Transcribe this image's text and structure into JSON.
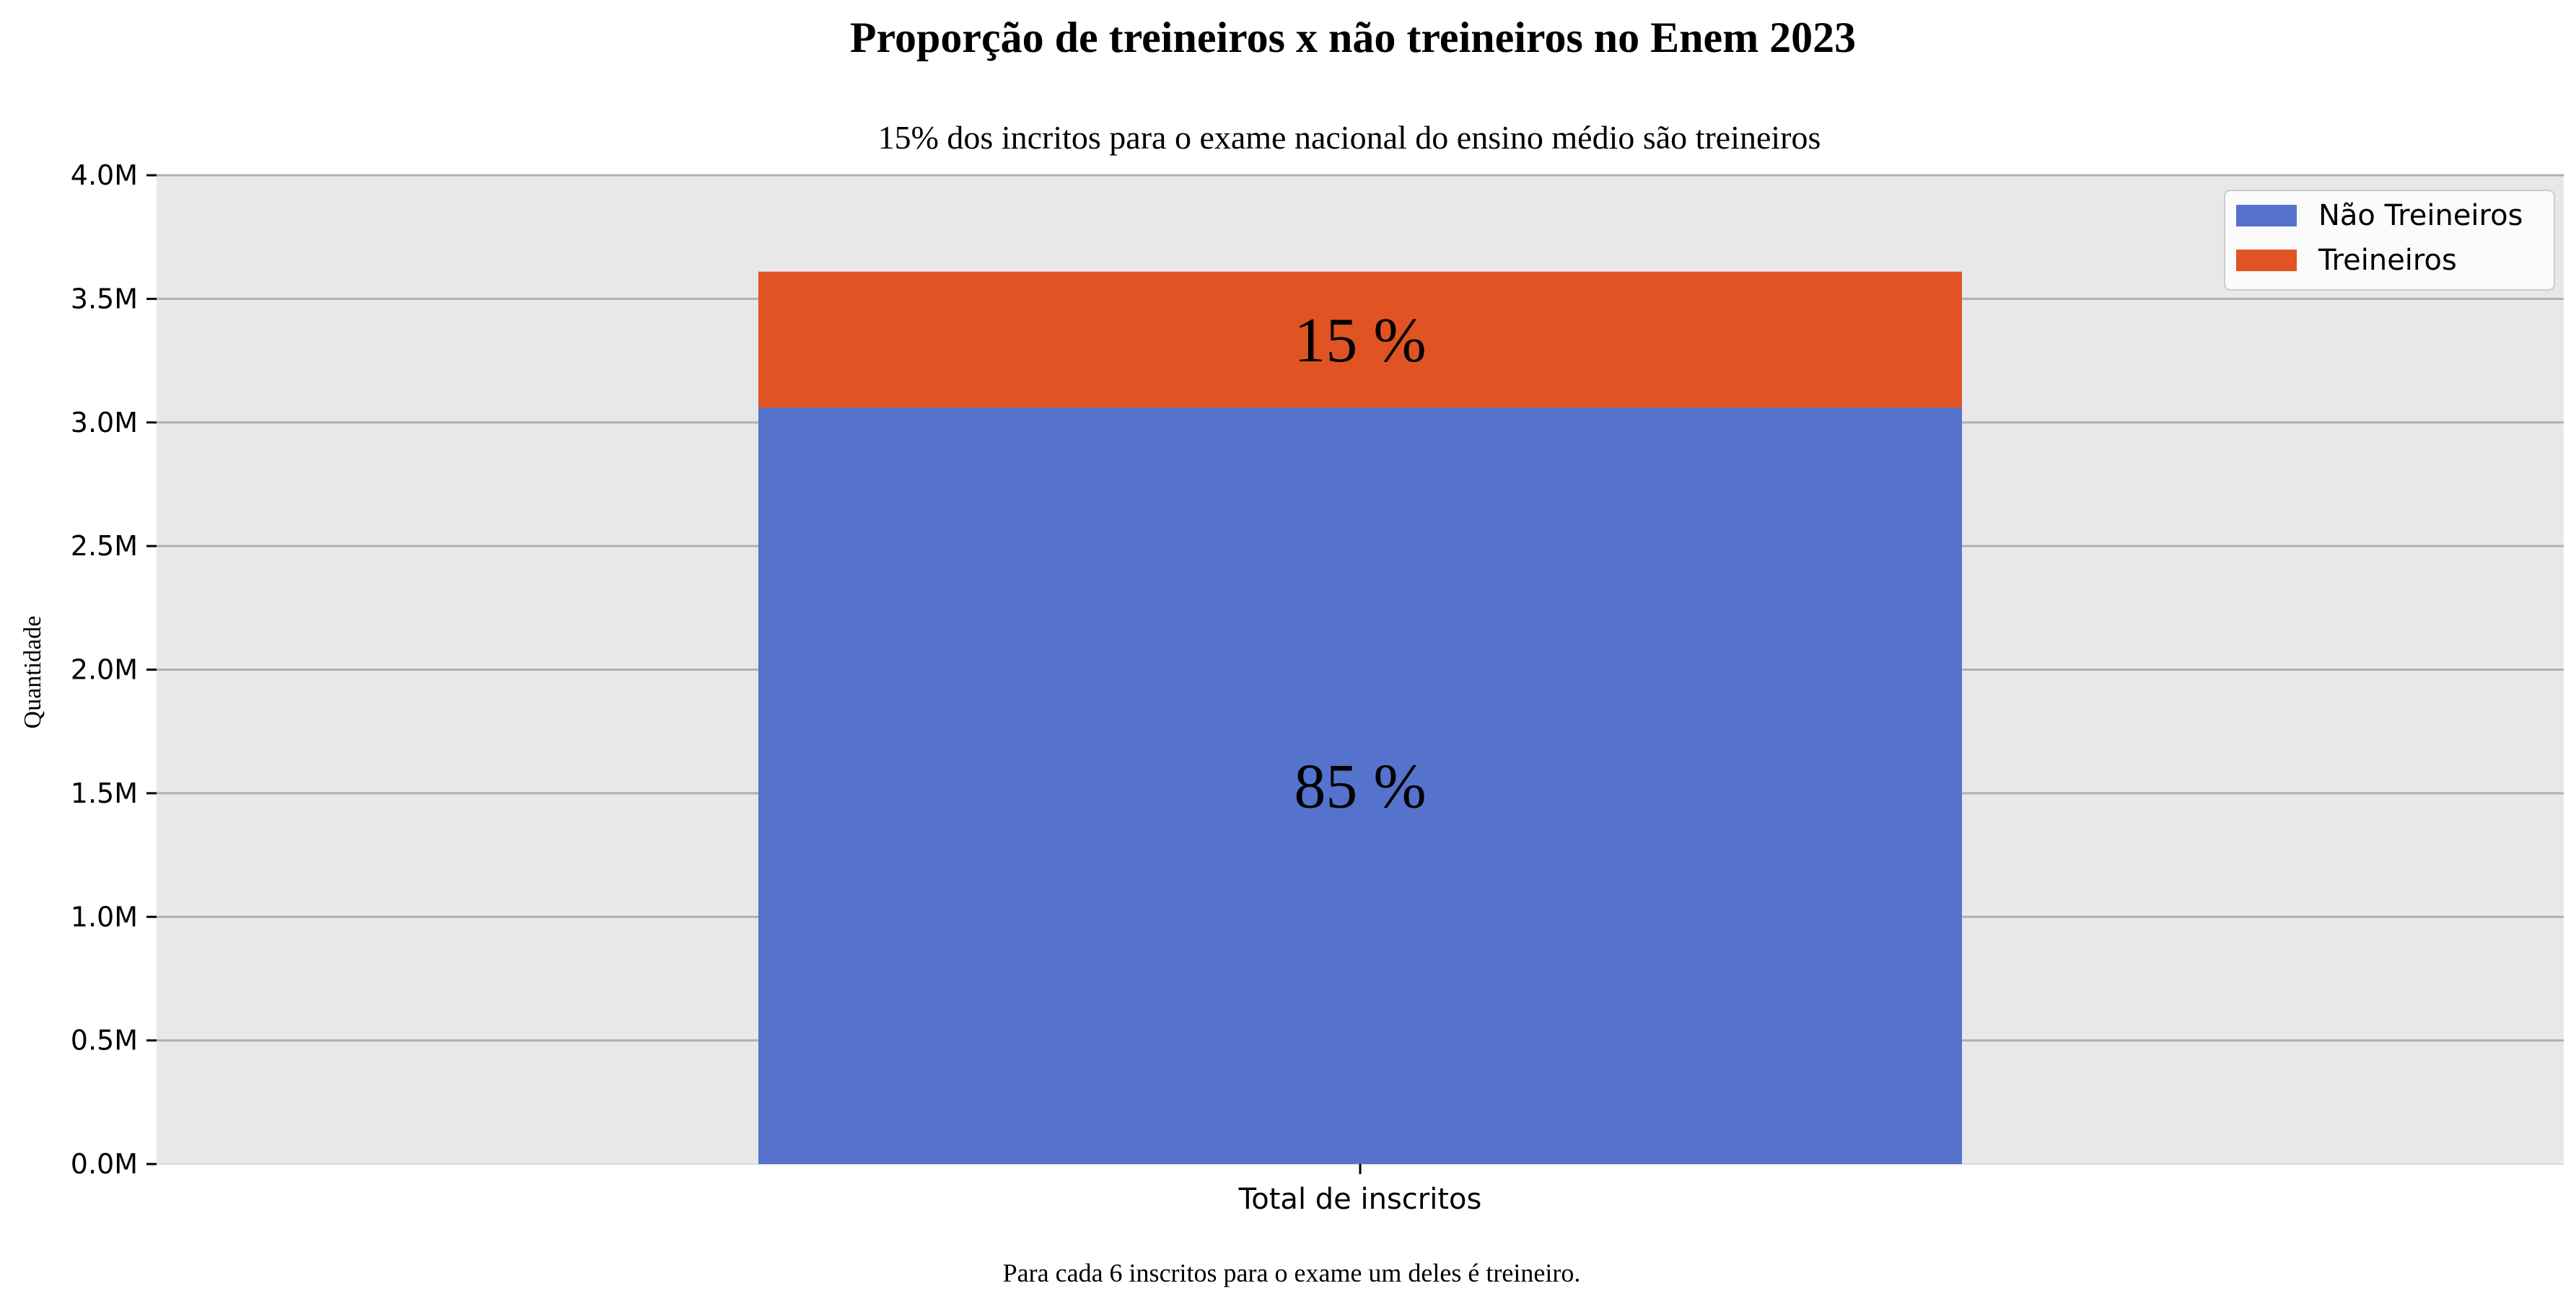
{
  "chart_data": {
    "type": "bar",
    "stacked": true,
    "title": "Proporção de treineiros x não treineiros no Enem 2023",
    "subtitle": "15% dos incritos para o exame nacional do ensino médio são treineiros",
    "footnote": "Para cada 6 inscritos para o exame um deles é treineiro.",
    "xlabel": "",
    "ylabel": "Quantidade",
    "categories": [
      "Total de inscritos"
    ],
    "ylim": [
      0,
      4000000
    ],
    "yticks": [
      0,
      500000,
      1000000,
      1500000,
      2000000,
      2500000,
      3000000,
      3500000,
      4000000
    ],
    "ytick_labels": [
      "0.0M",
      "0.5M",
      "1.0M",
      "1.5M",
      "2.0M",
      "2.5M",
      "3.0M",
      "3.5M",
      "4.0M"
    ],
    "grid": true,
    "legend_position": "top-right",
    "background_color": "#e8e8e8",
    "grid_color": "#b0b0b0",
    "series": [
      {
        "name": "Não Treineiros",
        "color": "#5573cc",
        "values": [
          3060000
        ],
        "data_labels": [
          "85 %"
        ]
      },
      {
        "name": "Treineiros",
        "color": "#e05323",
        "values": [
          550000
        ],
        "data_labels": [
          "15 %"
        ]
      }
    ]
  }
}
